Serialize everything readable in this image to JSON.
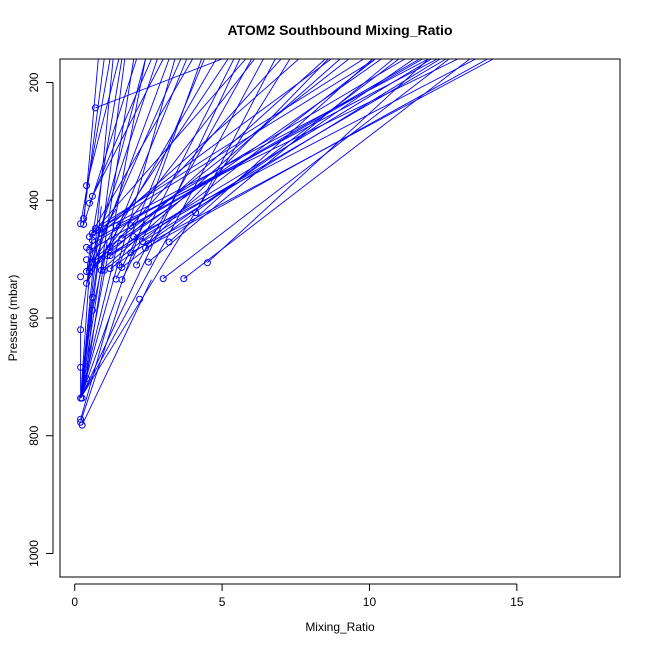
{
  "chart_data": {
    "type": "line",
    "title": "ATOM2 Southbound Mixing_Ratio",
    "xlabel": "Mixing_Ratio",
    "ylabel": "Pressure (mbar)",
    "xlim": [
      -0.5,
      18.5
    ],
    "ylim": [
      1040,
      160
    ],
    "y_inverted": true,
    "x_ticks": [
      "0",
      "5",
      "10",
      "15"
    ],
    "y_ticks": [
      "200",
      "400",
      "600",
      "800",
      "1000"
    ],
    "grid": false,
    "color": "#0000ff",
    "points": [
      {
        "x": 0.7,
        "y": 243
      },
      {
        "x": 0.4,
        "y": 375
      },
      {
        "x": 0.6,
        "y": 393
      },
      {
        "x": 0.5,
        "y": 405
      },
      {
        "x": 0.3,
        "y": 431
      },
      {
        "x": 0.2,
        "y": 440
      },
      {
        "x": 0.3,
        "y": 441
      },
      {
        "x": 1.4,
        "y": 443
      },
      {
        "x": 1.9,
        "y": 443
      },
      {
        "x": 0.7,
        "y": 448
      },
      {
        "x": 0.8,
        "y": 451
      },
      {
        "x": 0.6,
        "y": 456
      },
      {
        "x": 0.9,
        "y": 456
      },
      {
        "x": 0.5,
        "y": 462
      },
      {
        "x": 2.0,
        "y": 462
      },
      {
        "x": 1.6,
        "y": 465
      },
      {
        "x": 0.6,
        "y": 468
      },
      {
        "x": 2.3,
        "y": 470
      },
      {
        "x": 2.5,
        "y": 474
      },
      {
        "x": 3.2,
        "y": 471
      },
      {
        "x": 0.4,
        "y": 480
      },
      {
        "x": 1.2,
        "y": 480
      },
      {
        "x": 2.4,
        "y": 481
      },
      {
        "x": 0.5,
        "y": 485
      },
      {
        "x": 1.9,
        "y": 489
      },
      {
        "x": 1.1,
        "y": 494
      },
      {
        "x": 1.2,
        "y": 494
      },
      {
        "x": 0.4,
        "y": 501
      },
      {
        "x": 0.6,
        "y": 505
      },
      {
        "x": 2.5,
        "y": 505
      },
      {
        "x": 4.5,
        "y": 506
      },
      {
        "x": 1.5,
        "y": 510
      },
      {
        "x": 2.1,
        "y": 510
      },
      {
        "x": 1.6,
        "y": 514
      },
      {
        "x": 1.2,
        "y": 516
      },
      {
        "x": 0.9,
        "y": 519
      },
      {
        "x": 1.0,
        "y": 519
      },
      {
        "x": 0.4,
        "y": 521
      },
      {
        "x": 0.5,
        "y": 521
      },
      {
        "x": 0.2,
        "y": 530
      },
      {
        "x": 3.0,
        "y": 533
      },
      {
        "x": 1.4,
        "y": 534
      },
      {
        "x": 1.6,
        "y": 535
      },
      {
        "x": 3.7,
        "y": 533
      },
      {
        "x": 0.4,
        "y": 541
      },
      {
        "x": 0.6,
        "y": 565
      },
      {
        "x": 2.2,
        "y": 568
      },
      {
        "x": 0.6,
        "y": 587
      },
      {
        "x": 0.2,
        "y": 620
      },
      {
        "x": 0.2,
        "y": 684
      },
      {
        "x": 0.4,
        "y": 703
      },
      {
        "x": 0.2,
        "y": 736
      },
      {
        "x": 0.25,
        "y": 736
      },
      {
        "x": 0.2,
        "y": 772
      },
      {
        "x": 0.2,
        "y": 777
      },
      {
        "x": 0.25,
        "y": 782
      },
      {
        "x": 4.1,
        "y": 421
      }
    ],
    "lines": [
      [
        [
          0.2,
          736
        ],
        [
          4.3,
          160
        ]
      ],
      [
        [
          0.2,
          736
        ],
        [
          5.6,
          160
        ]
      ],
      [
        [
          0.2,
          736
        ],
        [
          6.4,
          160
        ]
      ],
      [
        [
          0.2,
          736
        ],
        [
          7.3,
          160
        ]
      ],
      [
        [
          0.2,
          736
        ],
        [
          2.4,
          160
        ]
      ],
      [
        [
          0.2,
          736
        ],
        [
          3.4,
          160
        ]
      ],
      [
        [
          0.2,
          736
        ],
        [
          1.3,
          160
        ]
      ],
      [
        [
          0.2,
          736
        ],
        [
          1.7,
          160
        ]
      ],
      [
        [
          0.2,
          736
        ],
        [
          2.0,
          160
        ]
      ],
      [
        [
          0.2,
          736
        ],
        [
          0.9,
          410
        ]
      ],
      [
        [
          0.2,
          736
        ],
        [
          0.5,
          521
        ]
      ],
      [
        [
          0.2,
          736
        ],
        [
          0.4,
          703
        ]
      ],
      [
        [
          0.2,
          736
        ],
        [
          0.2,
          684
        ]
      ],
      [
        [
          0.2,
          736
        ],
        [
          1.5,
          465
        ]
      ],
      [
        [
          0.2,
          736
        ],
        [
          0.6,
          568
        ]
      ],
      [
        [
          0.2,
          777
        ],
        [
          1.6,
          563
        ]
      ],
      [
        [
          0.25,
          782
        ],
        [
          2.6,
          535
        ]
      ],
      [
        [
          0.2,
          772
        ],
        [
          1.2,
          595
        ]
      ],
      [
        [
          0.2,
          684
        ],
        [
          0.2,
          620
        ]
      ],
      [
        [
          0.2,
          620
        ],
        [
          0.6,
          470
        ]
      ],
      [
        [
          0.4,
          541
        ],
        [
          4.8,
          160
        ]
      ],
      [
        [
          0.4,
          541
        ],
        [
          3.2,
          160
        ]
      ],
      [
        [
          0.4,
          541
        ],
        [
          2.4,
          160
        ]
      ],
      [
        [
          0.4,
          521
        ],
        [
          1.6,
          160
        ]
      ],
      [
        [
          0.4,
          521
        ],
        [
          2.8,
          160
        ]
      ],
      [
        [
          0.4,
          521
        ],
        [
          3.6,
          160
        ]
      ],
      [
        [
          0.4,
          521
        ],
        [
          5.2,
          160
        ]
      ],
      [
        [
          0.5,
          521
        ],
        [
          7.0,
          160
        ]
      ],
      [
        [
          0.5,
          521
        ],
        [
          8.5,
          160
        ]
      ],
      [
        [
          0.5,
          521
        ],
        [
          6.1,
          160
        ]
      ],
      [
        [
          0.5,
          505
        ],
        [
          9.3,
          160
        ]
      ],
      [
        [
          0.6,
          505
        ],
        [
          10.4,
          160
        ]
      ],
      [
        [
          0.4,
          480
        ],
        [
          11.2,
          160
        ]
      ],
      [
        [
          0.5,
          485
        ],
        [
          11.8,
          160
        ]
      ],
      [
        [
          0.6,
          468
        ],
        [
          12.3,
          160
        ]
      ],
      [
        [
          0.5,
          462
        ],
        [
          12.0,
          160
        ]
      ],
      [
        [
          0.6,
          456
        ],
        [
          10.2,
          160
        ]
      ],
      [
        [
          0.7,
          448
        ],
        [
          9.8,
          160
        ]
      ],
      [
        [
          0.8,
          451
        ],
        [
          8.7,
          160
        ]
      ],
      [
        [
          0.9,
          456
        ],
        [
          7.6,
          160
        ]
      ],
      [
        [
          0.6,
          393
        ],
        [
          3.0,
          160
        ]
      ],
      [
        [
          0.5,
          405
        ],
        [
          2.6,
          160
        ]
      ],
      [
        [
          0.4,
          375
        ],
        [
          1.5,
          160
        ]
      ],
      [
        [
          0.3,
          431
        ],
        [
          1.0,
          160
        ]
      ],
      [
        [
          0.3,
          441
        ],
        [
          0.8,
          160
        ]
      ],
      [
        [
          0.2,
          440
        ],
        [
          1.2,
          160
        ]
      ],
      [
        [
          0.3,
          441
        ],
        [
          2.1,
          160
        ]
      ],
      [
        [
          0.5,
          462
        ],
        [
          4.0,
          160
        ]
      ],
      [
        [
          0.6,
          456
        ],
        [
          5.8,
          160
        ]
      ],
      [
        [
          0.9,
          519
        ],
        [
          9.0,
          160
        ]
      ],
      [
        [
          1.0,
          519
        ],
        [
          10.2,
          160
        ]
      ],
      [
        [
          1.2,
          516
        ],
        [
          11.5,
          160
        ]
      ],
      [
        [
          1.1,
          494
        ],
        [
          12.1,
          160
        ]
      ],
      [
        [
          1.2,
          494
        ],
        [
          12.6,
          160
        ]
      ],
      [
        [
          1.4,
          443
        ],
        [
          13.0,
          160
        ]
      ],
      [
        [
          1.9,
          443
        ],
        [
          11.7,
          160
        ]
      ],
      [
        [
          2.0,
          462
        ],
        [
          13.6,
          160
        ]
      ],
      [
        [
          1.9,
          489
        ],
        [
          14.2,
          160
        ]
      ],
      [
        [
          2.3,
          470
        ],
        [
          12.4,
          160
        ]
      ],
      [
        [
          2.4,
          481
        ],
        [
          14.0,
          160
        ]
      ],
      [
        [
          2.5,
          474
        ],
        [
          8.6,
          160
        ]
      ],
      [
        [
          1.6,
          514
        ],
        [
          11.0,
          160
        ]
      ],
      [
        [
          2.5,
          505
        ],
        [
          10.8,
          160
        ]
      ],
      [
        [
          3.0,
          533
        ],
        [
          12.7,
          160
        ]
      ],
      [
        [
          3.7,
          533
        ],
        [
          13.4,
          160
        ]
      ],
      [
        [
          4.5,
          506
        ],
        [
          12.0,
          160
        ]
      ],
      [
        [
          3.2,
          471
        ],
        [
          10.1,
          160
        ]
      ],
      [
        [
          4.1,
          421
        ],
        [
          6.8,
          160
        ]
      ],
      [
        [
          0.7,
          243
        ],
        [
          5.0,
          160
        ]
      ],
      [
        [
          1.2,
          480
        ],
        [
          3.8,
          160
        ]
      ],
      [
        [
          1.5,
          510
        ],
        [
          4.4,
          160
        ]
      ],
      [
        [
          1.6,
          535
        ],
        [
          5.4,
          160
        ]
      ],
      [
        [
          2.1,
          510
        ],
        [
          6.0,
          160
        ]
      ],
      [
        [
          1.4,
          534
        ],
        [
          2.4,
          435
        ]
      ],
      [
        [
          1.6,
          465
        ],
        [
          3.3,
          410
        ]
      ],
      [
        [
          1.2,
          494
        ],
        [
          2.7,
          440
        ]
      ],
      [
        [
          0.9,
          456
        ],
        [
          1.4,
          415
        ]
      ],
      [
        [
          0.6,
          587
        ],
        [
          1.0,
          495
        ]
      ],
      [
        [
          0.4,
          703
        ],
        [
          1.1,
          470
        ]
      ],
      [
        [
          0.6,
          565
        ],
        [
          1.0,
          430
        ]
      ],
      [
        [
          0.6,
          587
        ],
        [
          0.4,
          703
        ]
      ]
    ]
  }
}
